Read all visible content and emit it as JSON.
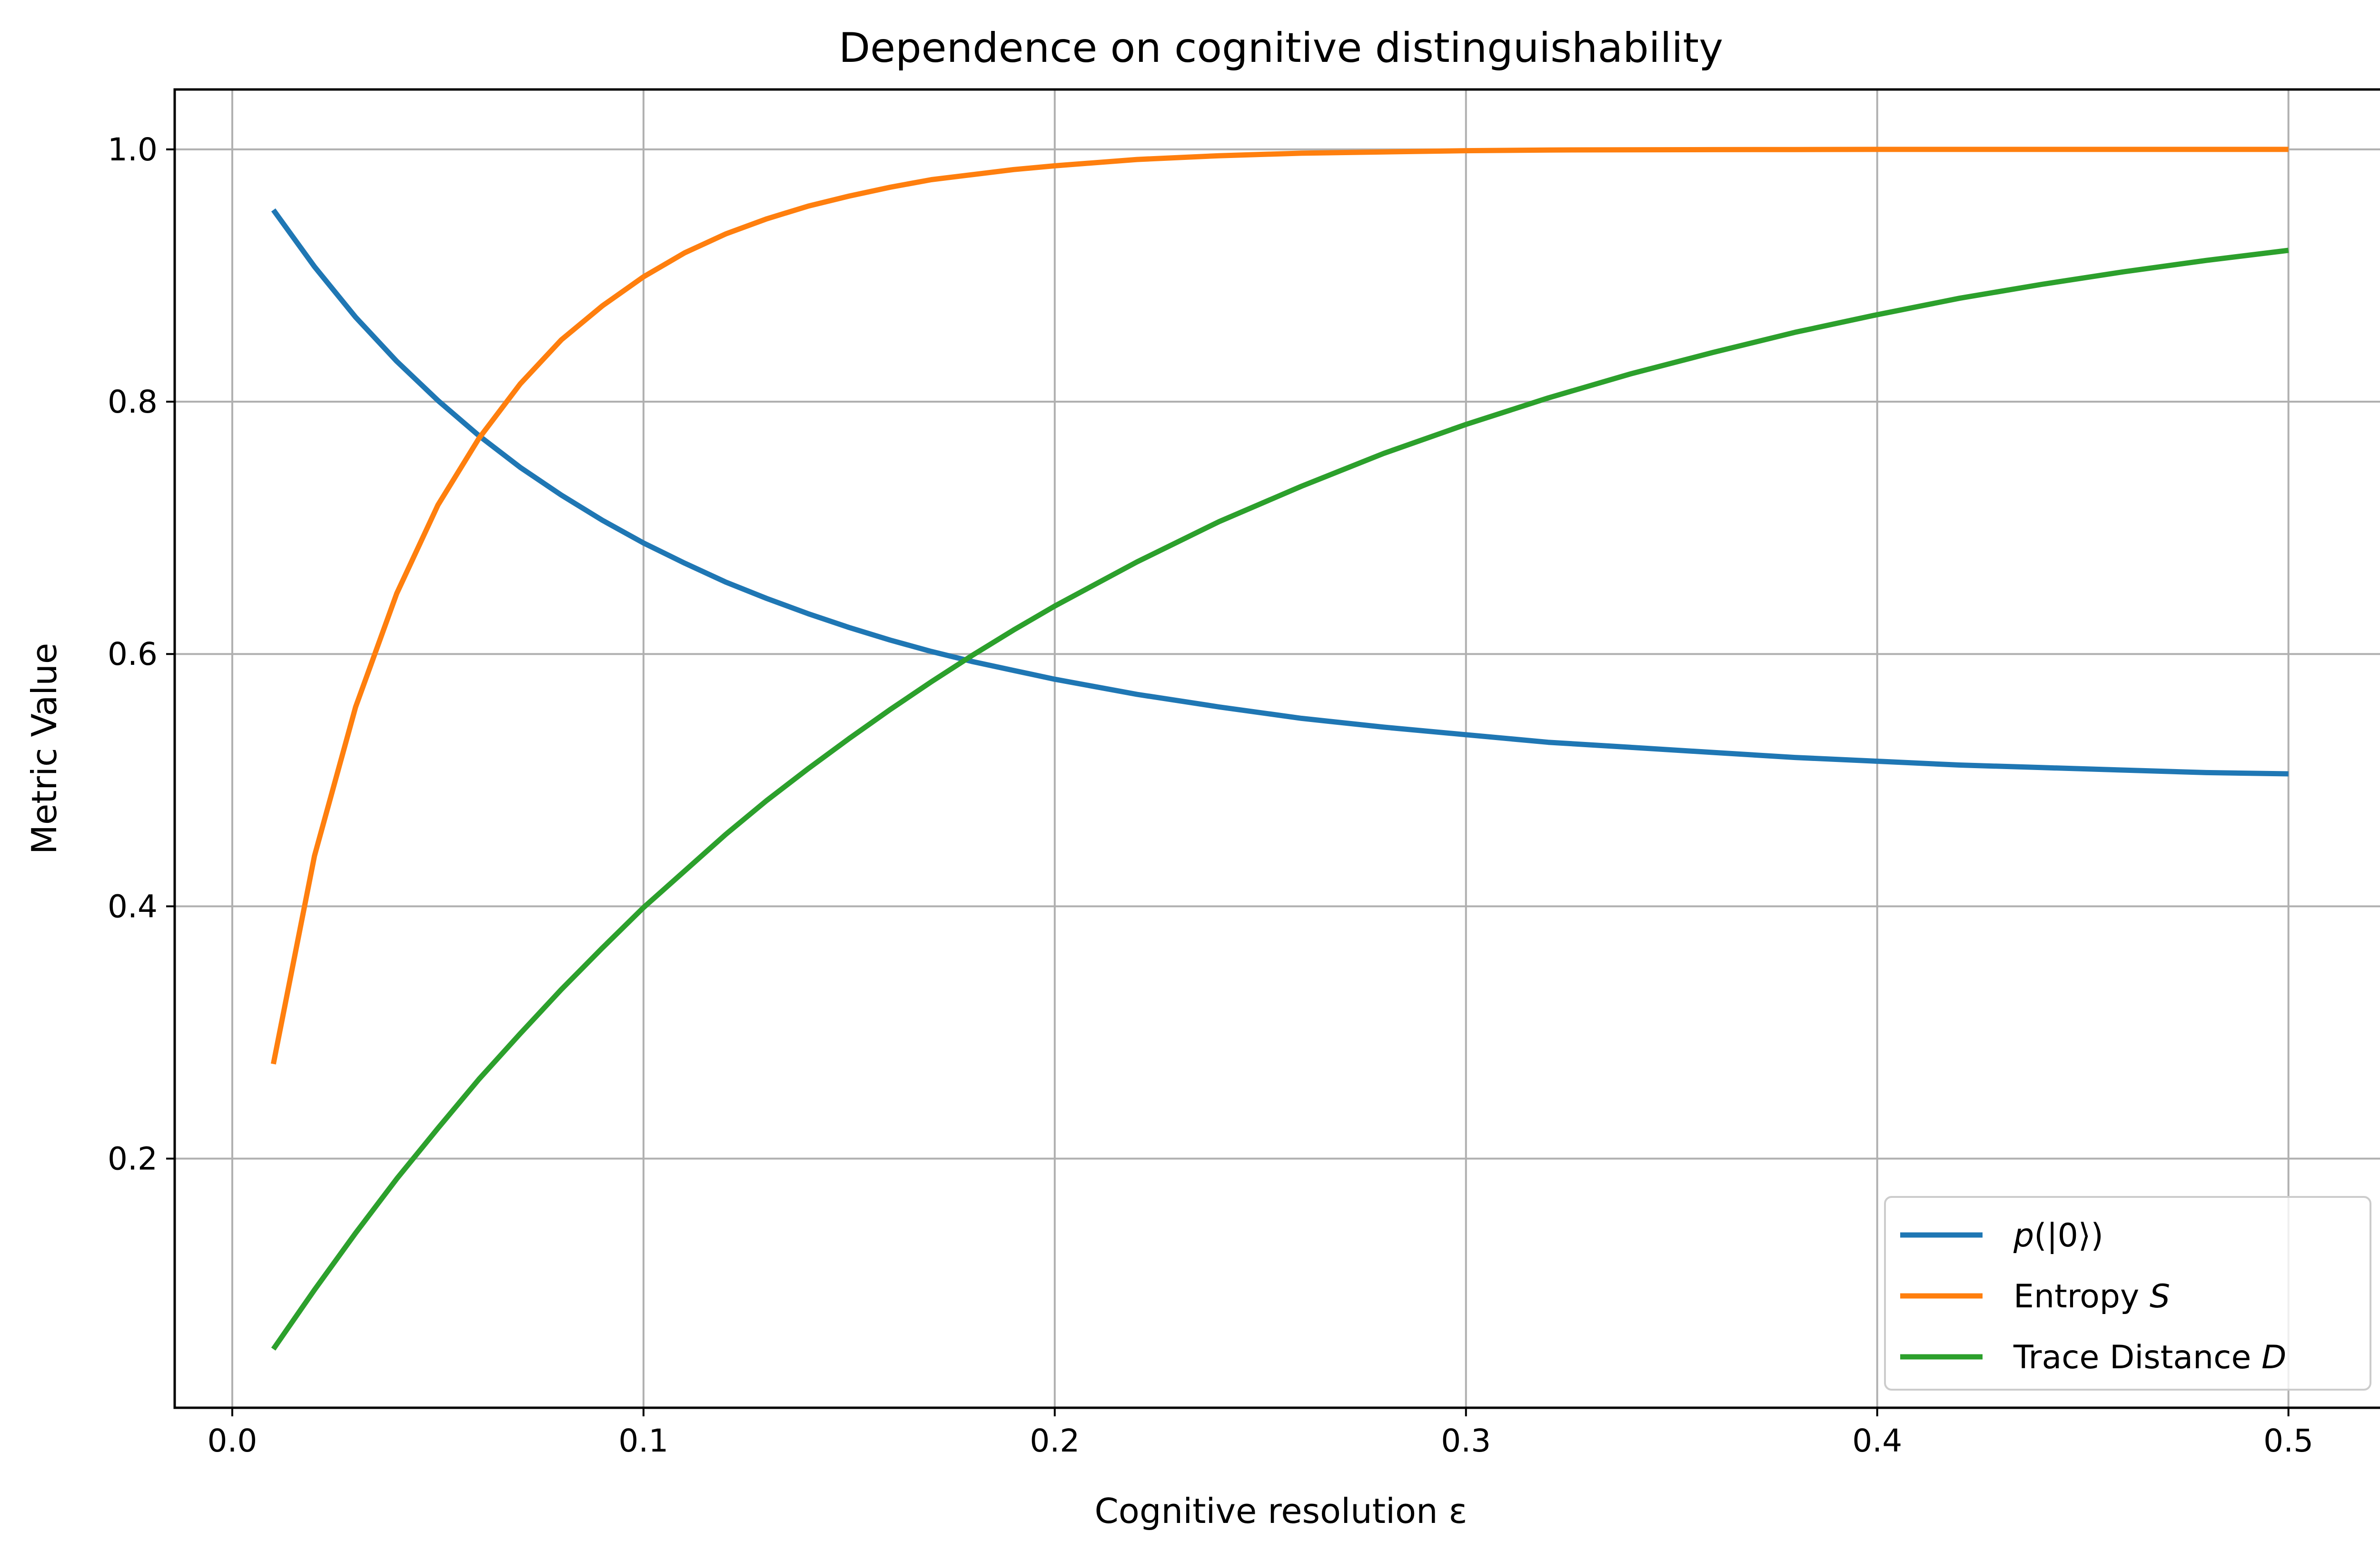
{
  "chart_data": {
    "type": "line",
    "title": "Dependence on cognitive distinguishability",
    "xlabel": "Cognitive resolution ε",
    "ylabel": "Metric Value",
    "xlim": [
      -0.014,
      0.524
    ],
    "ylim": [
      0.0025,
      1.0475
    ],
    "xticks": [
      0.0,
      0.1,
      0.2,
      0.3,
      0.4,
      0.5
    ],
    "xtick_labels": [
      "0.0",
      "0.1",
      "0.2",
      "0.3",
      "0.4",
      "0.5"
    ],
    "yticks": [
      0.2,
      0.4,
      0.6,
      0.8,
      1.0
    ],
    "ytick_labels": [
      "0.2",
      "0.4",
      "0.6",
      "0.8",
      "1.0"
    ],
    "grid": true,
    "legend_position": "lower-right",
    "x": [
      0.01,
      0.02,
      0.03,
      0.04,
      0.05,
      0.06,
      0.07,
      0.08,
      0.09,
      0.1,
      0.11,
      0.12,
      0.13,
      0.14,
      0.15,
      0.16,
      0.17,
      0.18,
      0.19,
      0.2,
      0.22,
      0.24,
      0.26,
      0.28,
      0.3,
      0.32,
      0.34,
      0.36,
      0.38,
      0.4,
      0.42,
      0.44,
      0.46,
      0.48,
      0.5
    ],
    "series": [
      {
        "name": "p(|0⟩)",
        "color": "#1f77b4",
        "values": [
          0.952,
          0.907,
          0.867,
          0.832,
          0.801,
          0.773,
          0.748,
          0.726,
          0.706,
          0.688,
          0.672,
          0.657,
          0.644,
          0.632,
          0.621,
          0.611,
          0.602,
          0.594,
          0.587,
          0.58,
          0.568,
          0.558,
          0.549,
          0.542,
          0.536,
          0.53,
          0.526,
          0.522,
          0.518,
          0.515,
          0.512,
          0.51,
          0.508,
          0.506,
          0.505
        ]
      },
      {
        "name": "Entropy S",
        "color": "#ff7f0e",
        "values": [
          0.275,
          0.44,
          0.558,
          0.648,
          0.718,
          0.771,
          0.814,
          0.849,
          0.876,
          0.899,
          0.918,
          0.933,
          0.945,
          0.955,
          0.963,
          0.97,
          0.976,
          0.98,
          0.984,
          0.987,
          0.992,
          0.995,
          0.997,
          0.998,
          0.999,
          0.9995,
          0.9997,
          0.9998,
          0.9999,
          1.0,
          1.0,
          1.0,
          1.0,
          1.0,
          1.0
        ]
      },
      {
        "name": "Trace Distance D",
        "color": "#2ca02c",
        "values": [
          0.049,
          0.096,
          0.141,
          0.184,
          0.224,
          0.263,
          0.299,
          0.334,
          0.367,
          0.399,
          0.428,
          0.457,
          0.484,
          0.509,
          0.533,
          0.556,
          0.578,
          0.599,
          0.619,
          0.638,
          0.673,
          0.705,
          0.733,
          0.759,
          0.782,
          0.803,
          0.822,
          0.839,
          0.855,
          0.869,
          0.882,
          0.893,
          0.903,
          0.912,
          0.92
        ]
      }
    ]
  },
  "legend": {
    "items": [
      {
        "prefix": "",
        "italic": "p",
        "suffix": "(|0⟩)"
      },
      {
        "prefix": "Entropy ",
        "italic": "S",
        "suffix": ""
      },
      {
        "prefix": "Trace Distance ",
        "italic": "D",
        "suffix": ""
      }
    ]
  }
}
